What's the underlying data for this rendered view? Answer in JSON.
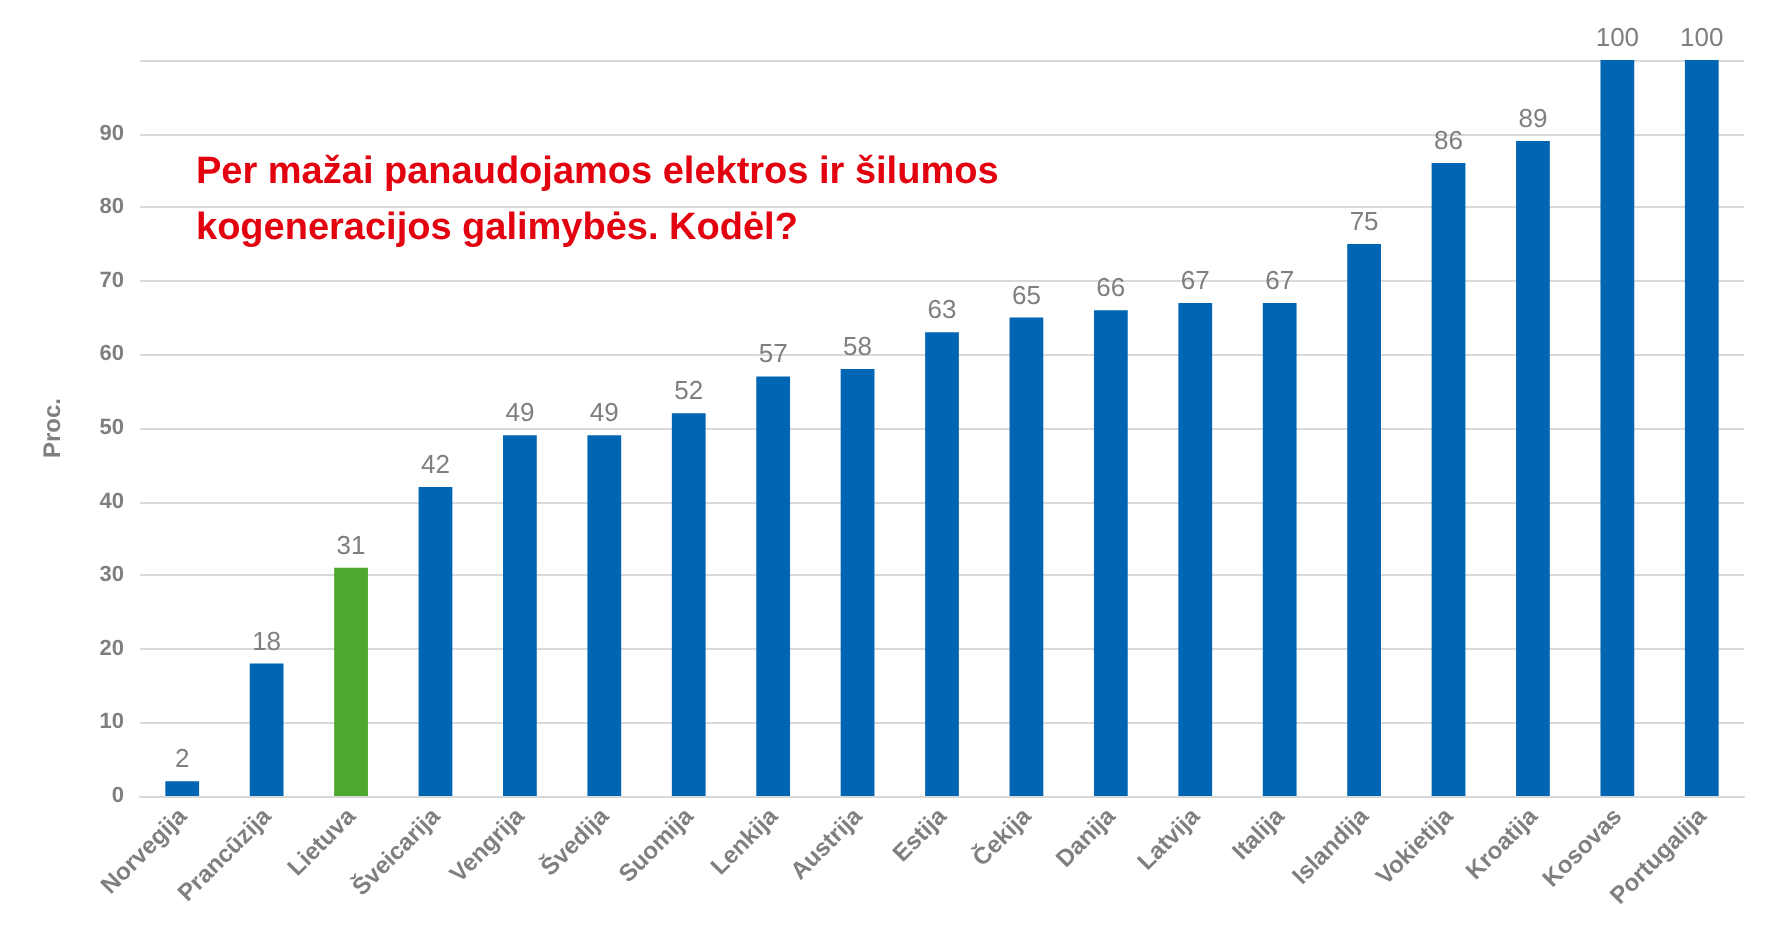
{
  "chart_data": {
    "type": "bar",
    "ylabel": "Proc.",
    "categories": [
      "Norvegija",
      "Prancūzija",
      "Lietuva",
      "Šveicarija",
      "Vengrija",
      "Švedija",
      "Suomija",
      "Lenkija",
      "Austrija",
      "Estija",
      "Čekija",
      "Danija",
      "Latvija",
      "Italija",
      "Islandija",
      "Vokietija",
      "Kroatija",
      "Kosovas",
      "Portugalija"
    ],
    "values": [
      2,
      18,
      31,
      42,
      49,
      49,
      52,
      57,
      58,
      63,
      65,
      66,
      67,
      67,
      75,
      86,
      89,
      100,
      100
    ],
    "colors": [
      "#0066b3",
      "#0066b3",
      "#4ea72e",
      "#0066b3",
      "#0066b3",
      "#0066b3",
      "#0066b3",
      "#0066b3",
      "#0066b3",
      "#0066b3",
      "#0066b3",
      "#0066b3",
      "#0066b3",
      "#0066b3",
      "#0066b3",
      "#0066b3",
      "#0066b3",
      "#0066b3",
      "#0066b3"
    ],
    "ylim": [
      0,
      100
    ],
    "yticks": [
      0,
      10,
      20,
      30,
      40,
      50,
      60,
      70,
      80,
      90,
      {
        "value": 100,
        "label": null
      }
    ],
    "grid": "y",
    "data_labels": true,
    "annotations": [
      "Per mažai panaudojamos elektros ir šilumos kogeneracijos galimybės. Kodėl?"
    ]
  }
}
